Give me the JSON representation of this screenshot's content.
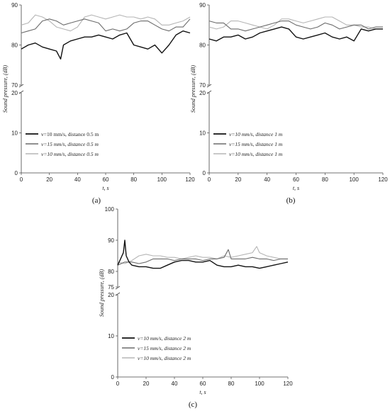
{
  "figure": {
    "background": "#ffffff"
  },
  "chart_data": [
    {
      "panel_label": "(a)",
      "type": "line",
      "xlabel": "t, s",
      "ylabel": "Sound pressure, (dB)",
      "xlim": [
        0,
        120
      ],
      "xticks": [
        "0",
        "20",
        "40",
        "60",
        "80",
        "100",
        "120"
      ],
      "y_axis_break": {
        "lower": {
          "range": [
            0,
            20
          ],
          "ticks": [
            "0",
            "10",
            "20"
          ]
        },
        "upper": {
          "range": [
            70,
            90
          ],
          "ticks": [
            "70",
            "80",
            "90"
          ]
        }
      },
      "legend_position": "lower-left",
      "series": [
        {
          "name": "v=10 mm/s, distance 0.5 m",
          "color": "#111111",
          "width": 1.4,
          "x": [
            0,
            5,
            10,
            15,
            20,
            25,
            28,
            30,
            35,
            40,
            45,
            50,
            55,
            60,
            65,
            70,
            75,
            80,
            85,
            90,
            95,
            100,
            105,
            110,
            115,
            120
          ],
          "y": [
            79,
            80,
            80.5,
            79.5,
            79,
            78.5,
            76.5,
            80,
            81,
            81.5,
            82,
            82,
            82.5,
            82,
            81.5,
            82.5,
            83,
            80,
            79.5,
            79,
            80,
            78,
            80,
            82.5,
            83.5,
            83
          ]
        },
        {
          "name": "v=15 mm/s, distance 0.5 m",
          "color": "#6b6b6b",
          "width": 1.1,
          "x": [
            0,
            5,
            10,
            15,
            20,
            25,
            30,
            35,
            40,
            45,
            50,
            55,
            60,
            65,
            70,
            75,
            80,
            85,
            90,
            95,
            100,
            105,
            110,
            115,
            120
          ],
          "y": [
            83,
            83.5,
            84,
            86,
            86.5,
            86,
            85,
            85.5,
            86,
            86.5,
            86,
            85.5,
            83.5,
            84,
            83.5,
            84,
            85.5,
            86,
            86,
            85,
            84,
            83.5,
            84.5,
            84.5,
            86.5
          ]
        },
        {
          "name": "v=10 mm/s, distance 0.5 m",
          "color": "#b5b5b5",
          "width": 1.1,
          "x": [
            0,
            5,
            10,
            15,
            20,
            25,
            30,
            35,
            40,
            45,
            50,
            55,
            60,
            65,
            70,
            75,
            80,
            85,
            90,
            95,
            100,
            105,
            110,
            115,
            120
          ],
          "y": [
            85,
            85.5,
            87.5,
            87,
            86,
            84.5,
            84,
            83.5,
            84.5,
            87,
            87.5,
            87,
            86.5,
            87,
            87.5,
            87,
            87,
            86.5,
            87,
            86.5,
            85,
            85,
            85.5,
            86,
            87
          ]
        }
      ]
    },
    {
      "panel_label": "(b)",
      "type": "line",
      "xlabel": "t, s",
      "ylabel": "Sound pressure, (dB)",
      "xlim": [
        0,
        120
      ],
      "xticks": [
        "0",
        "20",
        "40",
        "60",
        "80",
        "100",
        "120"
      ],
      "y_axis_break": {
        "lower": {
          "range": [
            0,
            20
          ],
          "ticks": [
            "0",
            "10",
            "20"
          ]
        },
        "upper": {
          "range": [
            70,
            90
          ],
          "ticks": [
            "70",
            "80",
            "90"
          ]
        }
      },
      "legend_position": "lower-left",
      "series": [
        {
          "name": "v=10 mm/s, distance 1 m",
          "color": "#111111",
          "width": 1.4,
          "x": [
            0,
            5,
            10,
            15,
            20,
            25,
            30,
            35,
            40,
            45,
            50,
            55,
            60,
            65,
            70,
            75,
            80,
            85,
            90,
            95,
            100,
            105,
            110,
            115,
            120
          ],
          "y": [
            81.5,
            81,
            82,
            82,
            82.5,
            81.5,
            82,
            83,
            83.5,
            84,
            84.5,
            84,
            82,
            81.5,
            82,
            82.5,
            83,
            82,
            81.5,
            82,
            81,
            84,
            83.5,
            84,
            84
          ]
        },
        {
          "name": "v=15 mm/s, distance 1 m",
          "color": "#6b6b6b",
          "width": 1.1,
          "x": [
            0,
            5,
            10,
            15,
            20,
            25,
            30,
            35,
            40,
            45,
            50,
            55,
            60,
            65,
            70,
            75,
            80,
            85,
            90,
            95,
            100,
            105,
            110,
            115,
            120
          ],
          "y": [
            86,
            85.5,
            85.5,
            84,
            84,
            83.5,
            84,
            84.5,
            85,
            85.5,
            86,
            86,
            85,
            84.5,
            84,
            84.5,
            85.5,
            85,
            84,
            84.5,
            85,
            85,
            84,
            84.5,
            84.5
          ]
        },
        {
          "name": "v=10 mm/s, distance 1 m",
          "color": "#b5b5b5",
          "width": 1.1,
          "x": [
            0,
            5,
            10,
            15,
            20,
            25,
            30,
            35,
            40,
            45,
            50,
            55,
            60,
            65,
            70,
            75,
            80,
            85,
            90,
            95,
            100,
            105,
            110,
            115,
            120
          ],
          "y": [
            84.5,
            84,
            84.5,
            86,
            86,
            85.5,
            85,
            84.5,
            84,
            85,
            86.5,
            86.5,
            86,
            85.5,
            86,
            86.5,
            87,
            87,
            86,
            85,
            85,
            84.5,
            84.5,
            84,
            84
          ]
        }
      ]
    },
    {
      "panel_label": "(c)",
      "type": "line",
      "xlabel": "t, s",
      "ylabel": "Sound pressure, (dB)",
      "xlim": [
        0,
        120
      ],
      "xticks": [
        "0",
        "20",
        "40",
        "60",
        "80",
        "100",
        "120"
      ],
      "y_axis_break": {
        "lower": {
          "range": [
            0,
            20
          ],
          "ticks": [
            "0",
            "10",
            "20"
          ]
        },
        "upper": {
          "range": [
            75,
            100
          ],
          "ticks": [
            "75",
            "80",
            "90",
            "100"
          ]
        }
      },
      "legend_position": "lower-left",
      "series": [
        {
          "name": "v=10 mm/s, distance 2 m",
          "color": "#111111",
          "width": 1.4,
          "x": [
            0,
            2,
            4,
            5,
            6,
            8,
            10,
            15,
            20,
            25,
            30,
            35,
            40,
            45,
            50,
            55,
            60,
            65,
            70,
            75,
            80,
            85,
            90,
            95,
            100,
            105,
            110,
            115,
            120
          ],
          "y": [
            82,
            84,
            86,
            90,
            85,
            83,
            82,
            81.5,
            81.5,
            81,
            81,
            82,
            83,
            83.5,
            83.5,
            83,
            83,
            83.5,
            82,
            81.5,
            81.5,
            82,
            81.5,
            81.5,
            81,
            81.5,
            82,
            82.5,
            83
          ]
        },
        {
          "name": "v=15 mm/s, distance 2 m",
          "color": "#6b6b6b",
          "width": 1.1,
          "x": [
            0,
            5,
            10,
            15,
            20,
            25,
            30,
            35,
            40,
            45,
            50,
            55,
            60,
            65,
            70,
            75,
            78,
            80,
            85,
            90,
            95,
            100,
            105,
            110,
            115,
            120
          ],
          "y": [
            82,
            83,
            83,
            82.5,
            83,
            84,
            84,
            84,
            83.5,
            84,
            84,
            84,
            83.5,
            84,
            84,
            84.5,
            87,
            84,
            84,
            84,
            84.5,
            84,
            84,
            83.5,
            84,
            84
          ]
        },
        {
          "name": "v=10 mm/s, distance 2 m",
          "color": "#b5b5b5",
          "width": 1.1,
          "x": [
            0,
            5,
            10,
            15,
            20,
            25,
            30,
            35,
            40,
            45,
            50,
            55,
            60,
            65,
            70,
            75,
            80,
            85,
            90,
            95,
            98,
            100,
            105,
            110,
            115,
            120
          ],
          "y": [
            83,
            82.5,
            83.5,
            85,
            85.5,
            85,
            85,
            84.5,
            84.5,
            84,
            84.5,
            85,
            84.5,
            84.5,
            84,
            85,
            84.5,
            85,
            85.5,
            86,
            88,
            86,
            85,
            84.5,
            84,
            84
          ]
        }
      ]
    }
  ]
}
